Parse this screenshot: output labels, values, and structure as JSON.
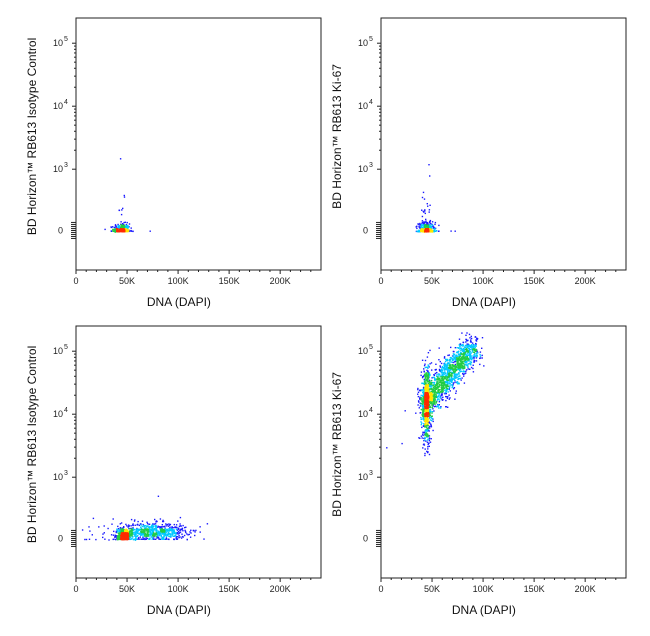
{
  "figure": {
    "background": "#ffffff",
    "colors": {
      "low_density": "#1a1aff",
      "mid_low": "#00c8ff",
      "mid": "#22cc44",
      "mid_high": "#ffe600",
      "high_density": "#ff2a00"
    }
  },
  "chart_data": [
    {
      "type": "scatter",
      "style": "density-colored flow cytometry dot plot",
      "xlabel": "DNA (DAPI)",
      "ylabel": "BD Horizon™ RB613  Isotype Control",
      "x_ticks": [
        "0",
        "50K",
        "100K",
        "150K",
        "200K"
      ],
      "x_tick_values": [
        0,
        50000,
        100000,
        150000,
        200000
      ],
      "xlim": [
        0,
        240000
      ],
      "y_scale": "biexponential",
      "y_ticks": [
        "0",
        "10^3",
        "10^4",
        "10^5"
      ],
      "y_tick_values": [
        0,
        1000,
        10000,
        100000
      ],
      "populations": [
        {
          "x_center": 44000,
          "x_spread": 4000,
          "y_center": 0,
          "y_spread": 60,
          "count": 420
        },
        {
          "x_center": 45000,
          "x_spread": 1500,
          "y_center": 400,
          "y_spread": 150,
          "count": 8
        }
      ],
      "outliers": [
        {
          "x": 43000,
          "y": 1500
        },
        {
          "x": 72000,
          "y": -20
        }
      ]
    },
    {
      "type": "scatter",
      "style": "density-colored flow cytometry dot plot",
      "xlabel": "DNA (DAPI)",
      "ylabel": "BD Horizon™ RB613  Ki-67",
      "x_ticks": [
        "0",
        "50K",
        "100K",
        "150K",
        "200K"
      ],
      "x_tick_values": [
        0,
        50000,
        100000,
        150000,
        200000
      ],
      "xlim": [
        0,
        240000
      ],
      "y_scale": "biexponential",
      "y_ticks": [
        "0",
        "10^3",
        "10^4",
        "10^5"
      ],
      "y_tick_values": [
        0,
        1000,
        10000,
        100000
      ],
      "populations": [
        {
          "x_center": 44000,
          "x_spread": 4000,
          "y_center": 0,
          "y_spread": 70,
          "count": 450
        },
        {
          "x_center": 43000,
          "x_spread": 2000,
          "y_center": 350,
          "y_spread": 250,
          "count": 25
        }
      ],
      "outliers": [
        {
          "x": 47000,
          "y": 900
        },
        {
          "x": 68000,
          "y": 0
        },
        {
          "x": 72000,
          "y": -10
        }
      ]
    },
    {
      "type": "scatter",
      "style": "density-colored flow cytometry dot plot",
      "xlabel": "DNA (DAPI)",
      "ylabel": "BD Horizon™ RB613  Isotype Control",
      "x_ticks": [
        "0",
        "50K",
        "100K",
        "150K",
        "200K"
      ],
      "x_tick_values": [
        0,
        50000,
        100000,
        150000,
        200000
      ],
      "xlim": [
        0,
        240000
      ],
      "y_scale": "biexponential",
      "y_ticks": [
        "0",
        "10^3",
        "10^4",
        "10^5"
      ],
      "y_tick_values": [
        0,
        1000,
        10000,
        100000
      ],
      "populations": [
        {
          "x_center": 47000,
          "x_spread": 3500,
          "y_center": 50,
          "y_spread": 60,
          "count": 420
        },
        {
          "x_center": 75000,
          "x_spread": 16000,
          "y_center": 120,
          "y_spread": 70,
          "count": 650
        },
        {
          "x_center": 55000,
          "x_spread": 30000,
          "y_center": 100,
          "y_spread": 130,
          "count": 80
        }
      ],
      "outliers": [
        {
          "x": 80000,
          "y": 700
        },
        {
          "x": 12000,
          "y": 200
        },
        {
          "x": 112000,
          "y": 100
        }
      ]
    },
    {
      "type": "scatter",
      "style": "density-colored flow cytometry dot plot",
      "xlabel": "DNA (DAPI)",
      "ylabel": "BD Horizon™ RB613  Ki-67",
      "x_ticks": [
        "0",
        "50K",
        "100K",
        "150K",
        "200K"
      ],
      "x_tick_values": [
        0,
        50000,
        100000,
        150000,
        200000
      ],
      "xlim": [
        0,
        240000
      ],
      "y_scale": "biexponential",
      "y_ticks": [
        "0",
        "10^3",
        "10^4",
        "10^5"
      ],
      "y_tick_values": [
        0,
        1000,
        10000,
        100000
      ],
      "populations": [
        {
          "x_center": 44000,
          "x_spread": 2500,
          "logy_center": 4.15,
          "logy_spread": 0.3,
          "count": 700
        },
        {
          "trail_from": [
            44000,
            4.2
          ],
          "trail_to": [
            90000,
            5.1
          ],
          "trail_spread_x": 6000,
          "trail_spread_logy": 0.1,
          "count": 1300
        }
      ],
      "outliers": [
        {
          "x": 5000,
          "y": 3000
        },
        {
          "x": 20000,
          "y": 3500
        },
        {
          "x": 100000,
          "y": 60000
        }
      ]
    }
  ]
}
